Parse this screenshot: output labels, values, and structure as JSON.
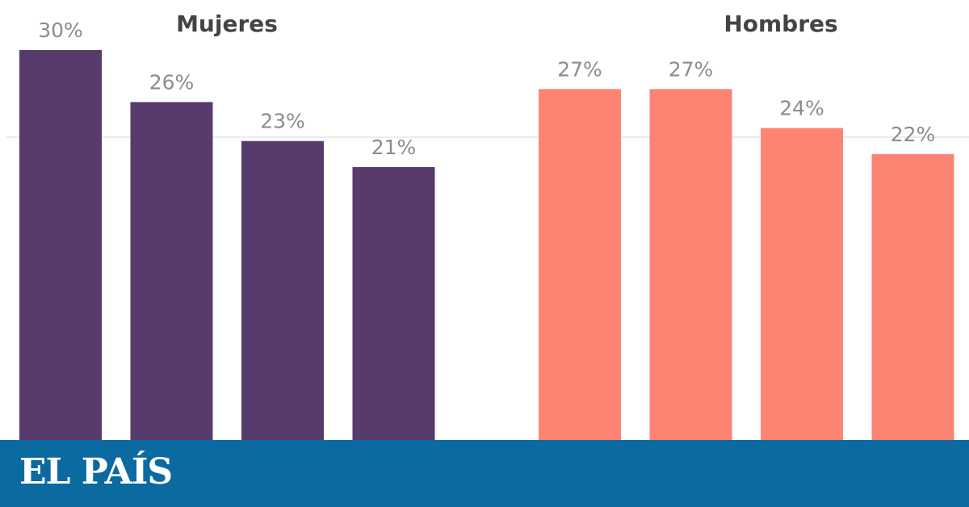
{
  "chart_data": {
    "type": "bar",
    "grid": true,
    "panels": [
      {
        "title": "Mujeres",
        "color": "#573b6c",
        "values": [
          30,
          26,
          23,
          21
        ],
        "labels": [
          "30%",
          "26%",
          "23%",
          "21%"
        ]
      },
      {
        "title": "Hombres",
        "color": "#fd8473",
        "values": [
          27,
          27,
          24,
          22
        ],
        "labels": [
          "27%",
          "27%",
          "24%",
          "22%"
        ]
      }
    ]
  },
  "footer": {
    "logo_text": "EL PAÍS",
    "background": "#0b6aa0"
  }
}
